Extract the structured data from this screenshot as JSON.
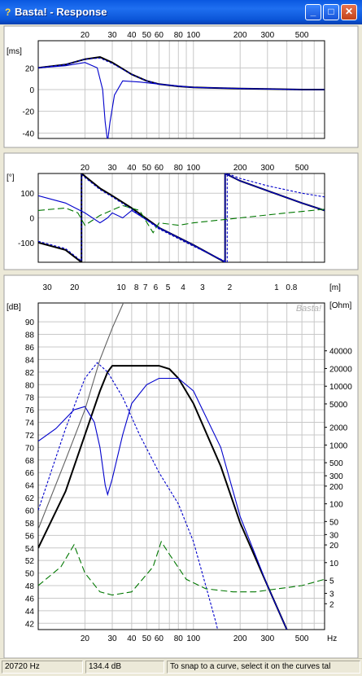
{
  "window": {
    "title": "Basta! - Response",
    "icon": "question-icon",
    "buttons": [
      "minimize-icon",
      "maximize-icon",
      "close-icon"
    ]
  },
  "statusbar": {
    "frequency": "20720 Hz",
    "level": "134.4 dB",
    "hint": "To snap to a curve, select it on the curves tal"
  },
  "watermark": "Basta!",
  "chart_data": [
    {
      "type": "line",
      "title": "",
      "ylabel": "[ms]",
      "xscale": "log",
      "xlim": [
        10,
        700
      ],
      "ylim": [
        -45,
        45
      ],
      "x_ticks": [
        "20",
        "30",
        "40",
        "50",
        "60",
        "80",
        "100",
        "200",
        "300",
        "500"
      ],
      "y_ticks": [
        "20",
        "0",
        "-20",
        "-40"
      ],
      "grid": true,
      "series": [
        {
          "color": "#000000",
          "style": "solid",
          "x": [
            10,
            15,
            20,
            25,
            30,
            40,
            50,
            60,
            80,
            100,
            200,
            300,
            500,
            700
          ],
          "y": [
            20,
            23,
            28,
            30,
            25,
            14,
            8,
            5,
            3,
            2,
            1,
            0.5,
            0,
            0
          ]
        },
        {
          "color": "#0000cc",
          "style": "solid",
          "x": [
            10,
            15,
            20,
            24,
            26,
            27,
            28,
            29,
            31,
            35,
            45,
            60,
            100,
            200,
            500,
            700
          ],
          "y": [
            20,
            22,
            25,
            20,
            0,
            -30,
            -48,
            -30,
            -5,
            8,
            7,
            5,
            2,
            1,
            0,
            0
          ]
        },
        {
          "color": "#0000cc",
          "style": "dashed",
          "x": [
            10,
            15,
            20,
            25,
            30,
            40,
            50,
            60,
            80,
            100,
            200,
            500,
            700
          ],
          "y": [
            20,
            23,
            28,
            29,
            24,
            14,
            8,
            5,
            3,
            2,
            1,
            0,
            0
          ]
        }
      ]
    },
    {
      "type": "line",
      "title": "",
      "ylabel": "[°]",
      "xscale": "log",
      "xlim": [
        10,
        700
      ],
      "ylim": [
        -180,
        180
      ],
      "x_ticks": [
        "20",
        "30",
        "40",
        "50",
        "60",
        "80",
        "100",
        "200",
        "300",
        "500"
      ],
      "y_ticks": [
        "100",
        "0",
        "-100"
      ],
      "grid": true,
      "series": [
        {
          "color": "#000000",
          "style": "solid",
          "x": [
            10,
            15,
            19,
            19.01,
            25,
            30,
            40,
            60,
            100,
            160,
            160.01,
            200,
            300,
            500,
            700
          ],
          "y": [
            -100,
            -130,
            -180,
            180,
            120,
            90,
            40,
            -40,
            -110,
            -180,
            180,
            150,
            110,
            60,
            30
          ]
        },
        {
          "color": "#0000cc",
          "style": "solid",
          "x": [
            10,
            15,
            20,
            25,
            28,
            30,
            35,
            40,
            60,
            100,
            160,
            160.01,
            200,
            300,
            500,
            700
          ],
          "y": [
            90,
            60,
            20,
            -20,
            0,
            20,
            0,
            30,
            -40,
            -110,
            -180,
            180,
            150,
            110,
            60,
            30
          ]
        },
        {
          "color": "#0000cc",
          "style": "dashed",
          "x": [
            10,
            15,
            19,
            19.01,
            25,
            30,
            40,
            60,
            100,
            165,
            165.01,
            200,
            300,
            500,
            700
          ],
          "y": [
            -95,
            -125,
            -175,
            175,
            115,
            85,
            35,
            -45,
            -115,
            -180,
            180,
            160,
            130,
            100,
            85
          ]
        },
        {
          "color": "#007700",
          "style": "dashed",
          "x": [
            10,
            15,
            18,
            20,
            25,
            35,
            45,
            55,
            60,
            80,
            100,
            200,
            400,
            700
          ],
          "y": [
            30,
            40,
            20,
            -30,
            10,
            50,
            30,
            -60,
            -20,
            -30,
            -20,
            0,
            20,
            35
          ]
        }
      ]
    },
    {
      "type": "line",
      "title": "",
      "ylabel": "[dB]",
      "y2label": "[Ohm]",
      "x2label": "[m]",
      "xlabel_unit": "Hz",
      "xscale": "log",
      "xlim": [
        10,
        700
      ],
      "ylim": [
        41,
        93
      ],
      "x_ticks": [
        "20",
        "30",
        "40",
        "50",
        "60",
        "80",
        "100",
        "200",
        "300",
        "500"
      ],
      "wavelength_ticks": [
        "30",
        "20",
        "10",
        "8",
        "7",
        "6",
        "5",
        "4",
        "3",
        "2",
        "1",
        "0.8"
      ],
      "y_ticks": [
        "42",
        "44",
        "46",
        "48",
        "50",
        "52",
        "54",
        "56",
        "58",
        "60",
        "62",
        "64",
        "66",
        "68",
        "70",
        "72",
        "74",
        "76",
        "78",
        "80",
        "82",
        "84",
        "86",
        "88",
        "90"
      ],
      "y2_ticks": [
        "2",
        "3",
        "5",
        "10",
        "20",
        "30",
        "50",
        "100",
        "200",
        "300",
        "500",
        "1000",
        "2000",
        "5000",
        "10000",
        "20000",
        "40000"
      ],
      "grid": true,
      "series": [
        {
          "color": "#000000",
          "style": "solid",
          "x": [
            10,
            15,
            20,
            25,
            28,
            30,
            40,
            60,
            70,
            80,
            100,
            150,
            200,
            300,
            400
          ],
          "y": [
            54,
            63,
            72,
            79,
            82,
            83,
            83,
            83,
            82.5,
            81,
            77,
            67,
            58,
            48,
            41
          ]
        },
        {
          "color": "#0000cc",
          "style": "solid",
          "x": [
            10,
            13,
            17,
            20,
            23,
            25,
            27,
            28,
            30,
            35,
            40,
            50,
            60,
            80,
            100,
            150,
            200,
            300,
            400
          ],
          "y": [
            71,
            73,
            76,
            76.5,
            74,
            70,
            64,
            62.5,
            65,
            72,
            77,
            80,
            81,
            81,
            79,
            70,
            59,
            48,
            41
          ]
        },
        {
          "color": "#0000cc",
          "style": "dashed",
          "x": [
            10,
            15,
            20,
            24,
            28,
            35,
            45,
            60,
            80,
            100,
            120,
            140,
            160
          ],
          "y": [
            60,
            73,
            81,
            83.5,
            82,
            78,
            72,
            66,
            61,
            55,
            48,
            42,
            36
          ]
        },
        {
          "color": "#007700",
          "style": "dashed",
          "x": [
            10,
            14,
            17,
            20,
            25,
            30,
            40,
            55,
            62,
            70,
            90,
            120,
            180,
            250,
            350,
            500,
            700
          ],
          "y": [
            48,
            51,
            54.5,
            50,
            47,
            46.5,
            47,
            51,
            55,
            53,
            49,
            47.5,
            47,
            47,
            47.5,
            48,
            49
          ]
        },
        {
          "color": "#606060",
          "style": "solid",
          "x": [
            10,
            15,
            20,
            25,
            30,
            40,
            50,
            60
          ],
          "y": [
            57,
            68,
            76,
            84,
            89,
            96,
            100,
            103
          ]
        }
      ]
    }
  ]
}
